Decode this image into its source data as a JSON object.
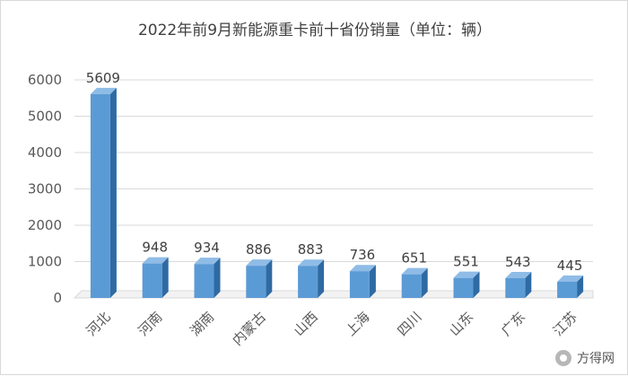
{
  "chart_data": {
    "type": "bar",
    "title": "2022年前9月新能源重卡前十省份销量（单位：辆）",
    "categories": [
      "河北",
      "河南",
      "湖南",
      "内蒙古",
      "山西",
      "上海",
      "四川",
      "山东",
      "广东",
      "江苏"
    ],
    "values": [
      5609,
      948,
      934,
      886,
      883,
      736,
      651,
      551,
      543,
      445
    ],
    "yticks": [
      0,
      1000,
      2000,
      3000,
      4000,
      5000,
      6000
    ],
    "ylim": [
      0,
      6000
    ],
    "grid": true,
    "bar_color": "#5b9bd5",
    "legend": "none"
  },
  "watermark": {
    "text": "方得网"
  }
}
